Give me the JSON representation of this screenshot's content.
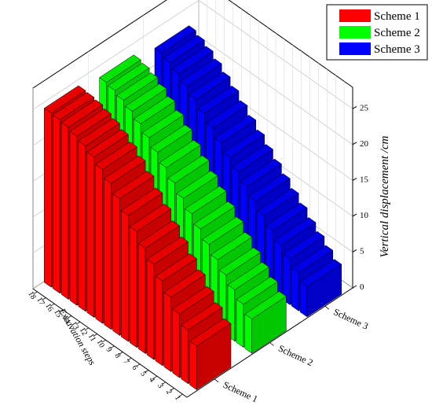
{
  "chart_data": {
    "type": "bar",
    "subtype": "3d-bar",
    "title": "",
    "xlabel": "Excavation steps",
    "ylabel": "",
    "zlabel": "Vertical displacement /cm",
    "zlim": [
      0,
      28
    ],
    "zticks": [
      0,
      5,
      10,
      15,
      20,
      25
    ],
    "grid": true,
    "legend_position": "top-right",
    "categories": [
      "1",
      "2",
      "3",
      "4",
      "5",
      "6",
      "7",
      "8",
      "9",
      "10",
      "11",
      "12",
      "13",
      "14",
      "15",
      "16",
      "17",
      "18"
    ],
    "series": [
      {
        "name": "Scheme 1",
        "color": "#ff0000",
        "values": [
          6.1,
          7.5,
          8.9,
          10.4,
          11.8,
          13.3,
          14.7,
          16.2,
          17.6,
          19.1,
          20.4,
          21.5,
          22.4,
          23.1,
          23.6,
          24.0,
          24.2,
          24.3
        ]
      },
      {
        "name": "Scheme 2",
        "color": "#00ff00",
        "values": [
          4.8,
          6.0,
          7.2,
          8.4,
          9.7,
          11.0,
          12.3,
          13.6,
          14.9,
          16.2,
          17.5,
          18.8,
          20.0,
          21.1,
          22.0,
          22.7,
          23.2,
          23.5
        ]
      },
      {
        "name": "Scheme 3",
        "color": "#0000ff",
        "values": [
          4.2,
          5.3,
          6.4,
          7.5,
          8.7,
          9.9,
          11.1,
          12.3,
          13.5,
          14.7,
          15.9,
          17.1,
          18.3,
          19.4,
          20.4,
          21.3,
          22.0,
          22.5
        ]
      }
    ],
    "scheme_axis_labels": [
      "Scheme 1",
      "Scheme 2",
      "Scheme 3"
    ]
  }
}
